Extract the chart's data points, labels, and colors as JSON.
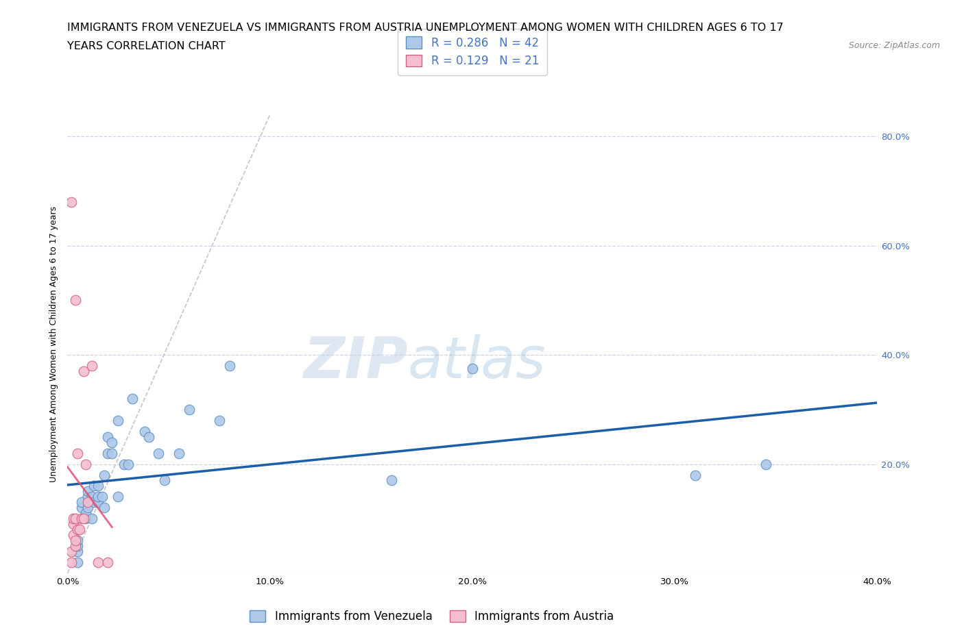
{
  "title_line1": "IMMIGRANTS FROM VENEZUELA VS IMMIGRANTS FROM AUSTRIA UNEMPLOYMENT AMONG WOMEN WITH CHILDREN AGES 6 TO 17",
  "title_line2": "YEARS CORRELATION CHART",
  "source": "Source: ZipAtlas.com",
  "ylabel": "Unemployment Among Women with Children Ages 6 to 17 years",
  "watermark": "ZIPatlas",
  "venezuela_color": "#adc8e8",
  "austria_color": "#f5bdd0",
  "venezuela_edge": "#5a8fc0",
  "austria_edge": "#d06080",
  "regression_blue": "#1a5fa8",
  "regression_pink": "#e05070",
  "diagonal_color": "#c8b8c8",
  "xmin": 0.0,
  "xmax": 0.4,
  "ymin": 0.0,
  "ymax": 0.84,
  "xticks": [
    0.0,
    0.1,
    0.2,
    0.3,
    0.4
  ],
  "xtick_labels": [
    "0.0%",
    "10.0%",
    "20.0%",
    "30.0%",
    "40.0%"
  ],
  "yticks_right": [
    0.2,
    0.4,
    0.6,
    0.8
  ],
  "ytick_right_labels": [
    "20.0%",
    "40.0%",
    "60.0%",
    "80.0%"
  ],
  "R_venezuela": 0.286,
  "N_venezuela": 42,
  "R_austria": 0.129,
  "N_austria": 21,
  "venezuela_x": [
    0.005,
    0.005,
    0.005,
    0.005,
    0.007,
    0.007,
    0.009,
    0.009,
    0.01,
    0.01,
    0.01,
    0.012,
    0.012,
    0.013,
    0.013,
    0.015,
    0.015,
    0.015,
    0.017,
    0.018,
    0.018,
    0.02,
    0.02,
    0.022,
    0.022,
    0.025,
    0.025,
    0.028,
    0.03,
    0.032,
    0.038,
    0.04,
    0.045,
    0.048,
    0.055,
    0.06,
    0.075,
    0.08,
    0.16,
    0.2,
    0.31,
    0.345
  ],
  "venezuela_y": [
    0.02,
    0.04,
    0.05,
    0.06,
    0.12,
    0.13,
    0.1,
    0.11,
    0.12,
    0.14,
    0.15,
    0.1,
    0.14,
    0.13,
    0.16,
    0.13,
    0.14,
    0.16,
    0.14,
    0.12,
    0.18,
    0.22,
    0.25,
    0.22,
    0.24,
    0.14,
    0.28,
    0.2,
    0.2,
    0.32,
    0.26,
    0.25,
    0.22,
    0.17,
    0.22,
    0.3,
    0.28,
    0.38,
    0.17,
    0.375,
    0.18,
    0.2
  ],
  "austria_x": [
    0.002,
    0.002,
    0.002,
    0.003,
    0.003,
    0.003,
    0.004,
    0.004,
    0.004,
    0.004,
    0.005,
    0.005,
    0.006,
    0.007,
    0.008,
    0.008,
    0.009,
    0.01,
    0.012,
    0.015,
    0.02
  ],
  "austria_y": [
    0.02,
    0.04,
    0.68,
    0.07,
    0.09,
    0.1,
    0.05,
    0.06,
    0.1,
    0.5,
    0.08,
    0.22,
    0.08,
    0.1,
    0.1,
    0.37,
    0.2,
    0.13,
    0.38,
    0.02,
    0.02
  ],
  "legend_label_venezuela": "Immigrants from Venezuela",
  "legend_label_austria": "Immigrants from Austria",
  "title_fontsize": 11.5,
  "source_fontsize": 9,
  "label_fontsize": 9,
  "tick_fontsize": 9.5,
  "legend_fontsize": 12,
  "background_color": "#ffffff",
  "grid_color": "#c8d4e8",
  "right_tick_color": "#4472c4",
  "scatter_size": 110
}
